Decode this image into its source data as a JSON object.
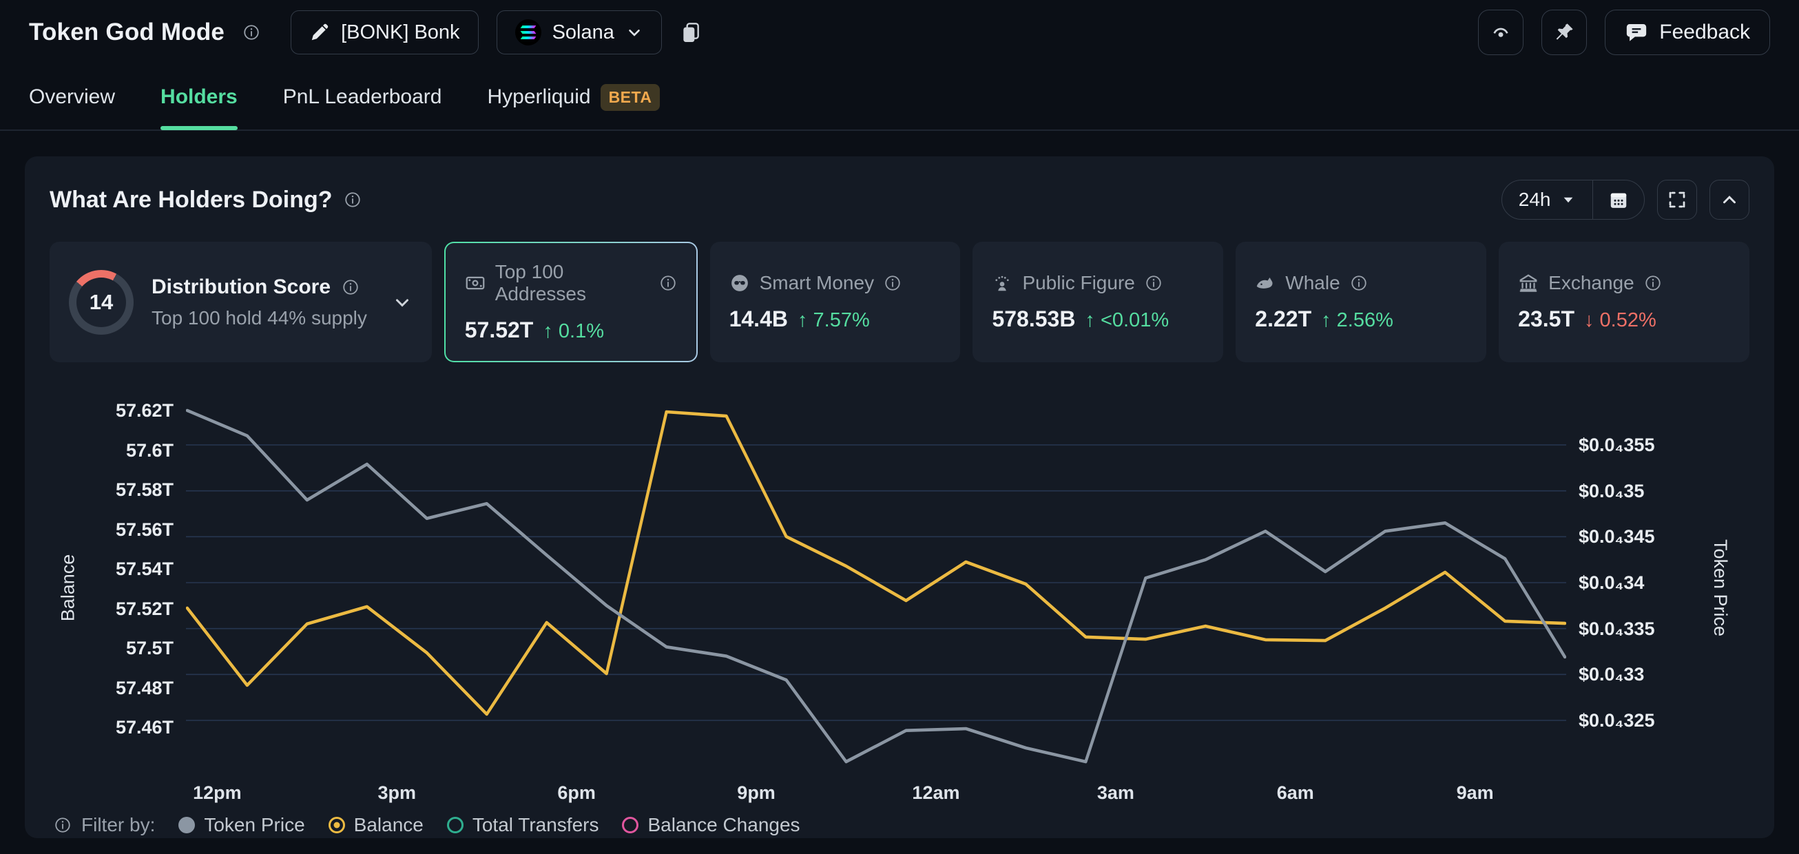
{
  "theme": {
    "positive": "#55dda0",
    "negative": "#ee7066",
    "balance_line": "#ecba42",
    "price_line": "#8b96a3",
    "accent": "#55dda0",
    "gauge_arc": "#ed7167"
  },
  "header": {
    "title": "Token God Mode",
    "token_button": "[BONK] Bonk",
    "chain_button": "Solana",
    "feedback_label": "Feedback"
  },
  "tabs": [
    {
      "label": "Overview",
      "active": false
    },
    {
      "label": "Holders",
      "active": true
    },
    {
      "label": "PnL Leaderboard",
      "active": false
    },
    {
      "label": "Hyperliquid",
      "active": false,
      "badge": "BETA"
    }
  ],
  "panel": {
    "title": "What Are Holders Doing?",
    "range": "24h"
  },
  "stats": {
    "distribution": {
      "score": "14",
      "label": "Distribution Score",
      "subtitle": "Top 100 hold 44% supply"
    },
    "cards": [
      {
        "icon": "banknote",
        "label": "Top 100 Addresses",
        "value": "57.52T",
        "arrow": "↑",
        "change": "0.1%",
        "direction": "up",
        "selected": true
      },
      {
        "icon": "smart-money",
        "label": "Smart Money",
        "value": "14.4B",
        "arrow": "↑",
        "change": "7.57%",
        "direction": "up",
        "selected": false
      },
      {
        "icon": "public-figure",
        "label": "Public Figure",
        "value": "578.53B",
        "arrow": "↑",
        "change": "<0.01%",
        "direction": "up",
        "selected": false
      },
      {
        "icon": "whale",
        "label": "Whale",
        "value": "2.22T",
        "arrow": "↑",
        "change": "2.56%",
        "direction": "up",
        "selected": false
      },
      {
        "icon": "exchange",
        "label": "Exchange",
        "value": "23.5T",
        "arrow": "↓",
        "change": "0.52%",
        "direction": "down",
        "selected": false
      }
    ]
  },
  "chart_data": {
    "type": "line",
    "x": [
      "12pm",
      "1pm",
      "2pm",
      "3pm",
      "4pm",
      "5pm",
      "6pm",
      "7pm",
      "8pm",
      "9pm",
      "10pm",
      "11pm",
      "12am",
      "1am",
      "2am",
      "3am",
      "4am",
      "5am",
      "6am",
      "7am",
      "8am",
      "9am",
      "10am",
      "11am"
    ],
    "x_axis_labels": [
      "12pm",
      "3pm",
      "6pm",
      "9pm",
      "12am",
      "3am",
      "6am",
      "9am"
    ],
    "series": [
      {
        "name": "Balance",
        "axis": "left",
        "color": "#ecba42",
        "values": [
          57.5202,
          57.4812,
          57.5122,
          57.5209,
          57.4976,
          57.4666,
          57.5129,
          57.4871,
          57.6193,
          57.6172,
          57.5563,
          57.5414,
          57.524,
          57.5435,
          57.5323,
          57.5056,
          57.5045,
          57.5111,
          57.5042,
          57.5038,
          57.5202,
          57.5383,
          57.5136,
          57.5125
        ]
      },
      {
        "name": "Token Price",
        "axis": "right",
        "color": "#8b96a3",
        "values": [
          3.5875e-05,
          3.56e-05,
          3.49e-05,
          3.529e-05,
          3.47e-05,
          3.486e-05,
          3.43e-05,
          3.375e-05,
          3.33e-05,
          3.32e-05,
          3.294e-05,
          3.205e-05,
          3.239e-05,
          3.241e-05,
          3.22e-05,
          3.205e-05,
          3.405e-05,
          3.425e-05,
          3.456e-05,
          3.412e-05,
          3.456e-05,
          3.465e-05,
          3.426e-05,
          3.319e-05
        ]
      }
    ],
    "left_axis": {
      "label": "Balance",
      "ticks": [
        "57.62T",
        "57.6T",
        "57.58T",
        "57.56T",
        "57.54T",
        "57.52T",
        "57.5T",
        "57.48T",
        "57.46T"
      ],
      "tick_values": [
        57.62,
        57.6,
        57.58,
        57.56,
        57.54,
        57.52,
        57.5,
        57.48,
        57.46
      ]
    },
    "right_axis": {
      "label": "Token Price",
      "ticks": [
        "$0.0₄355",
        "$0.0₄35",
        "$0.0₄345",
        "$0.0₄34",
        "$0.0₄335",
        "$0.0₄33",
        "$0.0₄325"
      ],
      "tick_values": [
        3.55e-05,
        3.5e-05,
        3.45e-05,
        3.4e-05,
        3.35e-05,
        3.3e-05,
        3.25e-05
      ]
    },
    "grid": "horizontal",
    "legend_position": "bottom"
  },
  "legend": {
    "filter_label": "Filter by:",
    "items": [
      {
        "label": "Token Price",
        "color": "#8b96a3",
        "state": "filled"
      },
      {
        "label": "Balance",
        "color": "#ecba42",
        "state": "selected"
      },
      {
        "label": "Total Transfers",
        "color": "#2fae8f",
        "state": "ring"
      },
      {
        "label": "Balance Changes",
        "color": "#e0569e",
        "state": "ring"
      }
    ]
  }
}
